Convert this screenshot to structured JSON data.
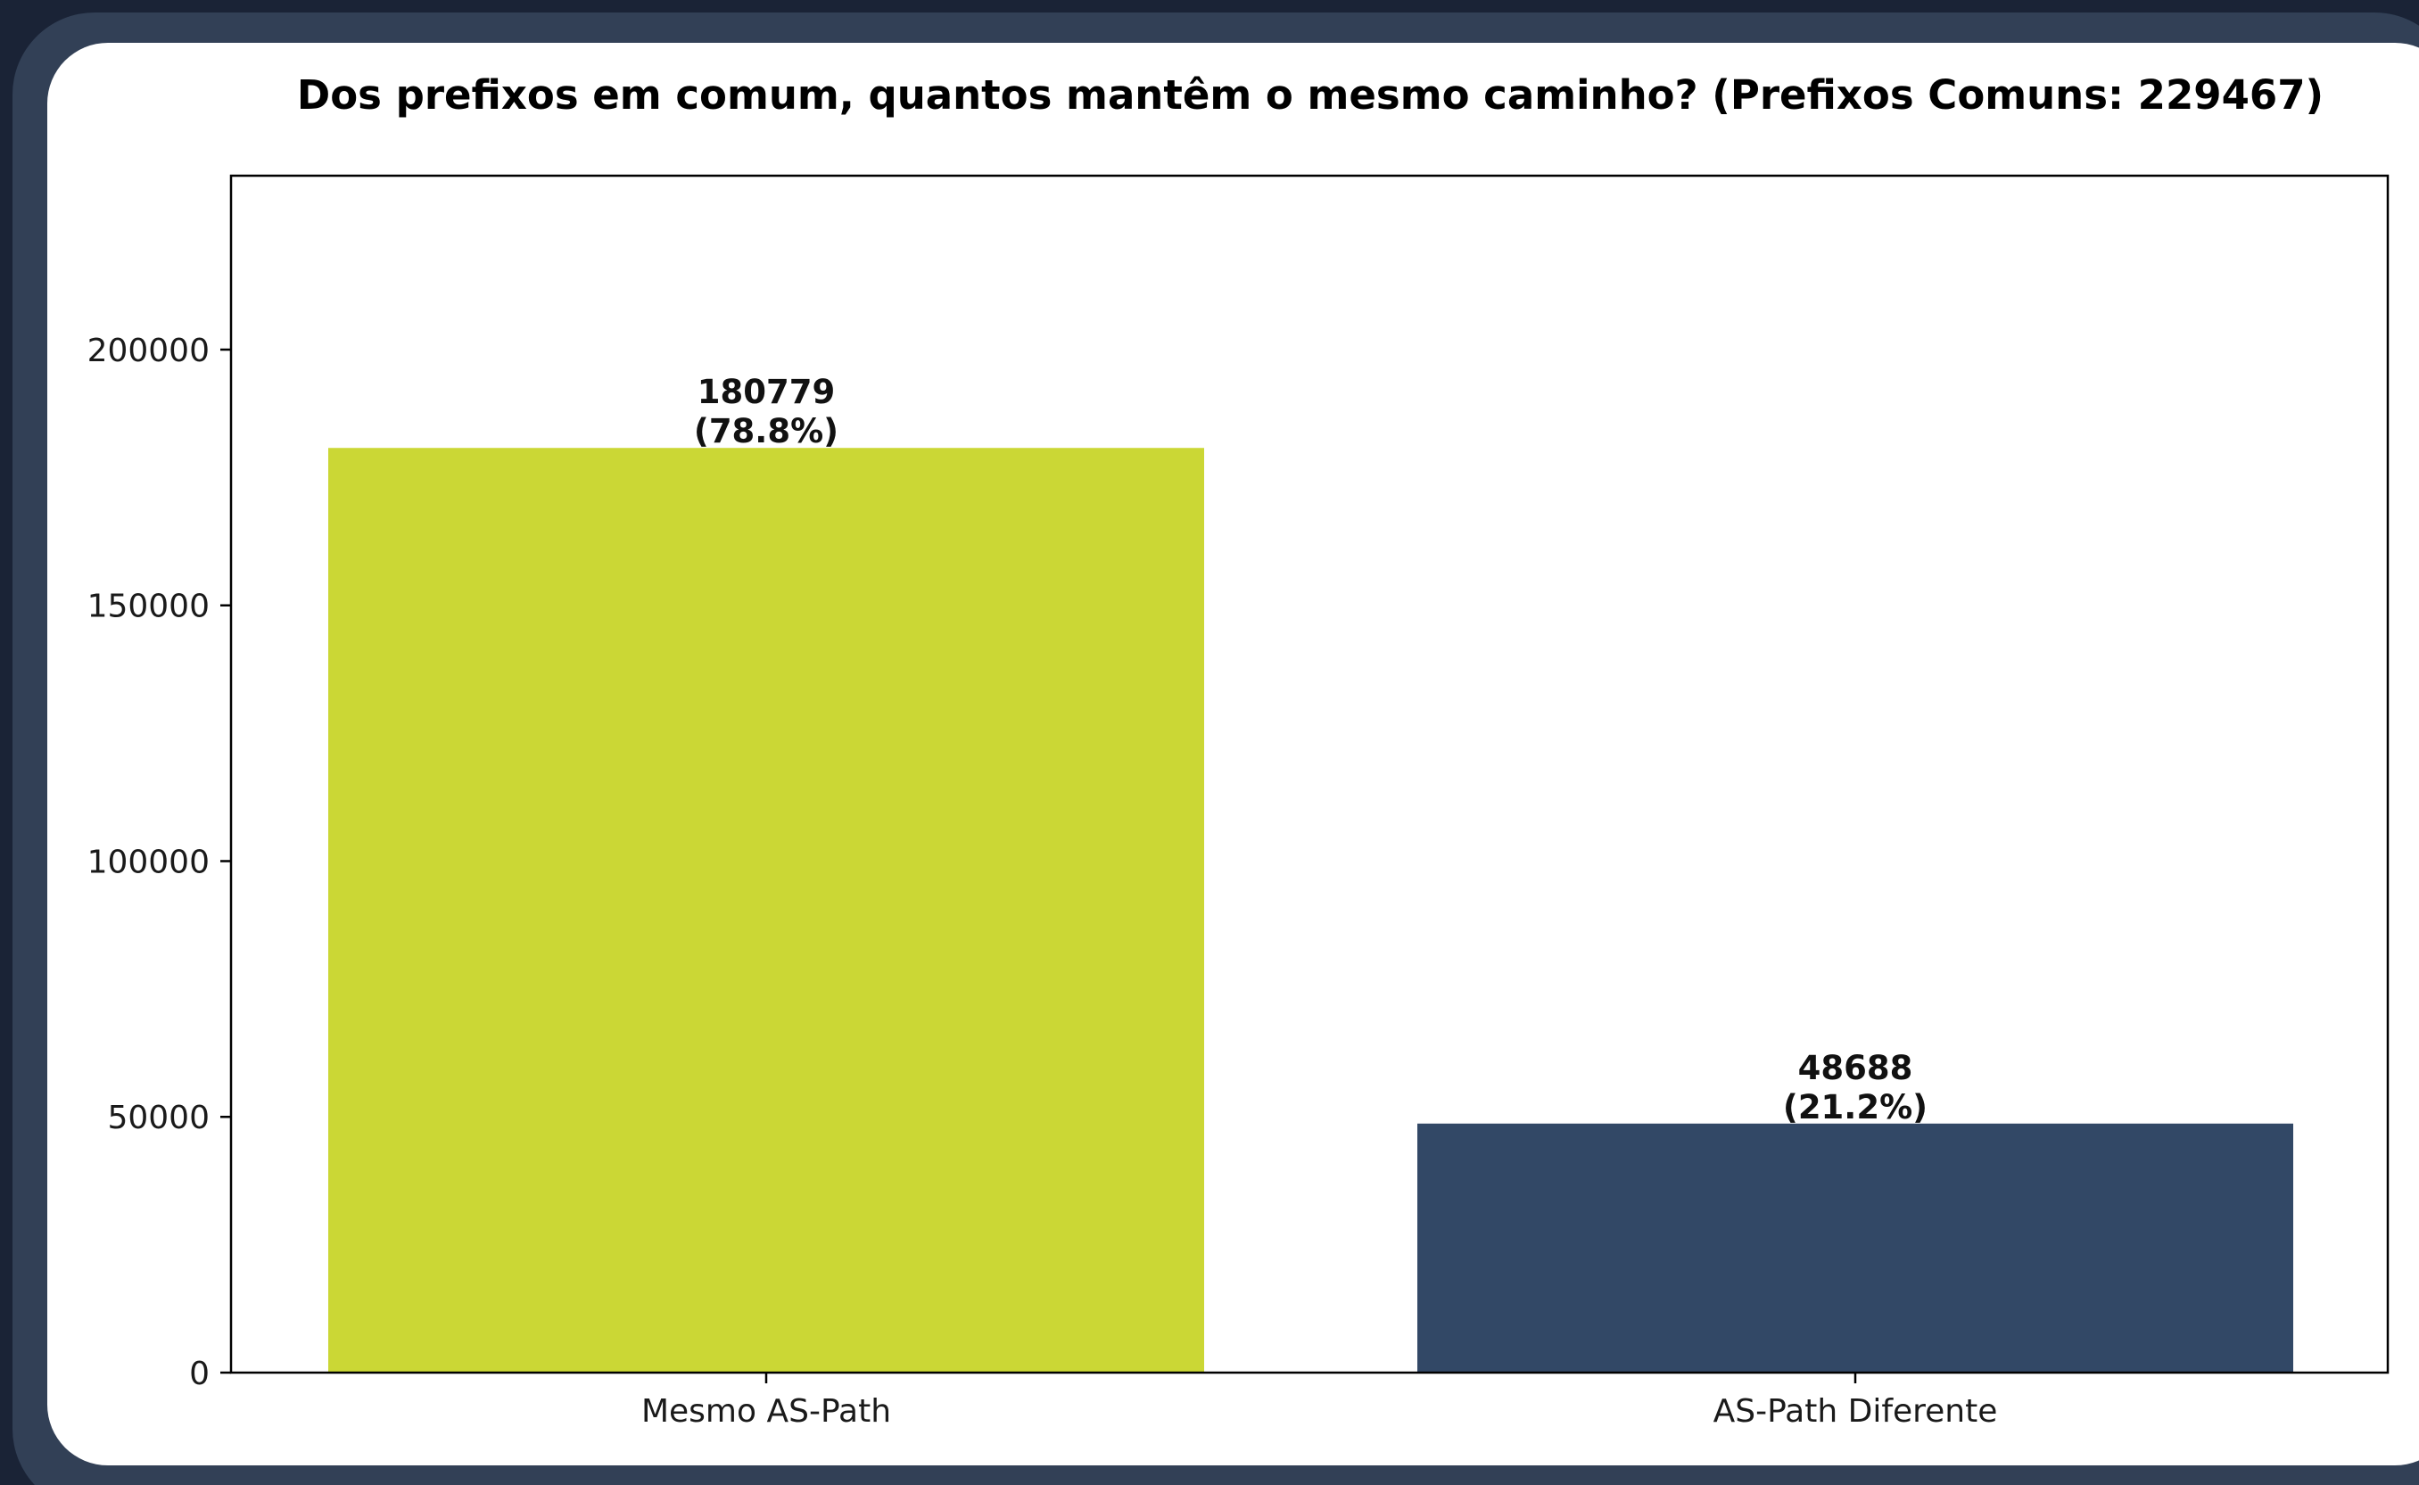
{
  "chart_data": {
    "type": "bar",
    "title": "Dos prefixos em comum, quantos mantêm o mesmo caminho? (Prefixos Comuns: 229467)",
    "xlabel": "",
    "ylabel": "",
    "categories": [
      "Mesmo AS-Path",
      "AS-Path Diferente"
    ],
    "values": [
      180779,
      48688
    ],
    "data_labels": [
      {
        "value": "180779",
        "percent": "(78.8%)"
      },
      {
        "value": "48688",
        "percent": "(21.2%)"
      }
    ],
    "colors": [
      "#cbd735",
      "#324866"
    ],
    "ylim": [
      0,
      234000
    ],
    "yticks": [
      0,
      50000,
      100000,
      150000,
      200000
    ],
    "ytick_labels": [
      "0",
      "50000",
      "100000",
      "150000",
      "200000"
    ],
    "grid": false,
    "legend": false
  }
}
